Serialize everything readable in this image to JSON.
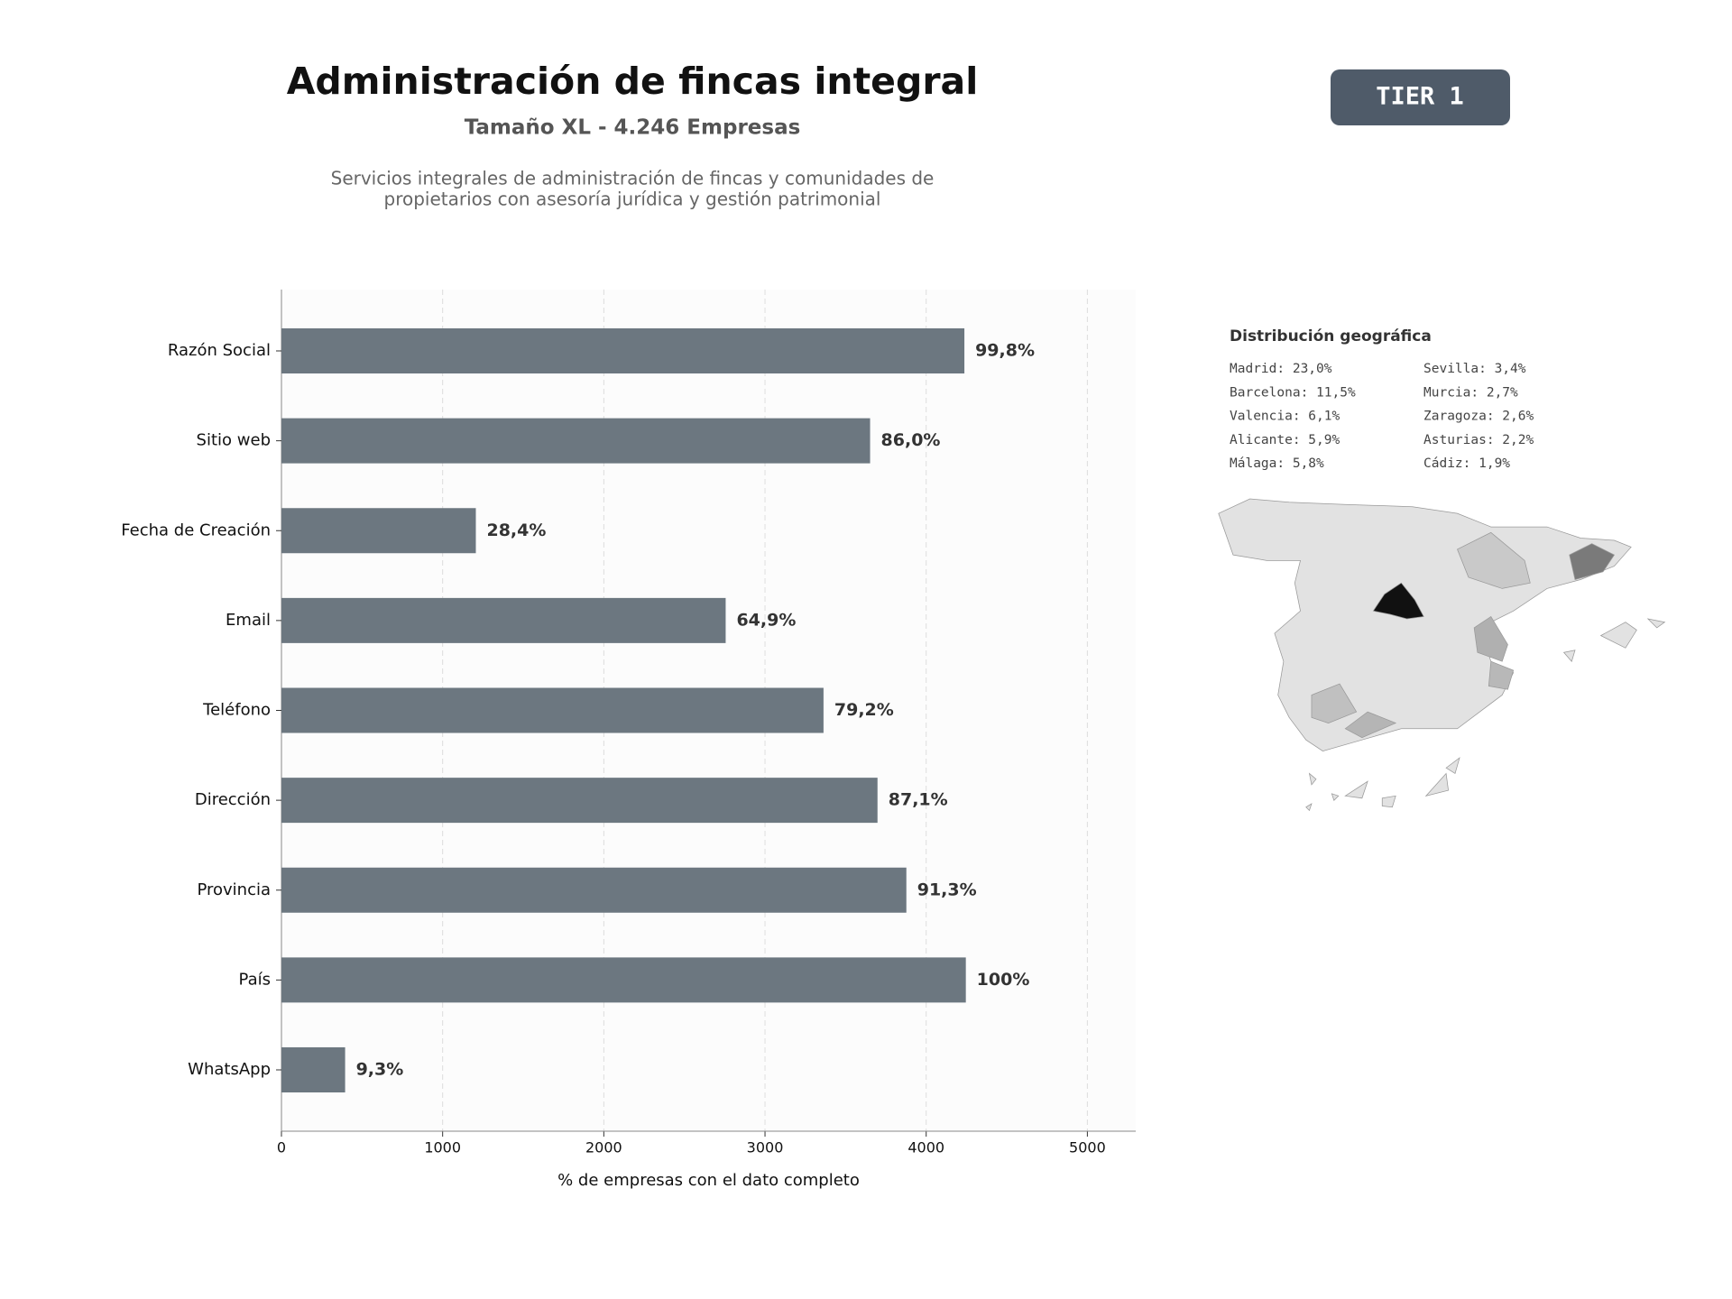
{
  "header": {
    "title": "Administración de fincas integral",
    "subtitle": "Tamaño XL - 4.246 Empresas",
    "description": [
      "Servicios integrales de administración de fincas y comunidades de",
      "propietarios con asesoría jurídica y gestión patrimonial"
    ]
  },
  "badge": "TIER 1",
  "chart_data": {
    "type": "bar",
    "orientation": "horizontal",
    "categories": [
      "Razón Social",
      "Sitio web",
      "Fecha de Creación",
      "Email",
      "Teléfono",
      "Dirección",
      "Provincia",
      "País",
      "WhatsApp"
    ],
    "values": [
      4237,
      3652,
      1206,
      2756,
      3363,
      3698,
      3877,
      4246,
      395
    ],
    "value_labels": [
      "99,8%",
      "86,0%",
      "28,4%",
      "64,9%",
      "79,2%",
      "87,1%",
      "91,3%",
      "100%",
      "9,3%"
    ],
    "color": "#6c7780",
    "xlim": [
      0,
      5300
    ],
    "xticks": [
      0,
      1000,
      2000,
      3000,
      4000,
      5000
    ],
    "xlabel": "% de empresas con el dato completo",
    "grid": true
  },
  "geo": {
    "title": "Distribución geográfica",
    "entries": [
      "Madrid: 23,0%",
      "Barcelona: 11,5%",
      "Valencia: 6,1%",
      "Alicante: 5,9%",
      "Málaga: 5,8%",
      "Sevilla: 3,4%",
      "Murcia: 2,7%",
      "Zaragoza: 2,6%",
      "Asturias: 2,2%",
      "Cádiz: 1,9%"
    ]
  }
}
